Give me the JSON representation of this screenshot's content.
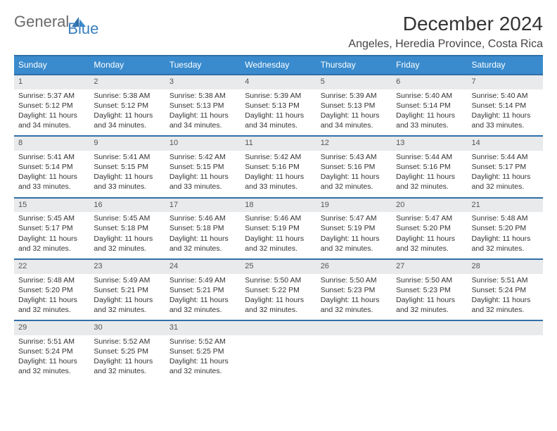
{
  "logo": {
    "text1": "General",
    "text2": "Blue"
  },
  "title": "December 2024",
  "location": "Angeles, Heredia Province, Costa Rica",
  "weekdays": [
    "Sunday",
    "Monday",
    "Tuesday",
    "Wednesday",
    "Thursday",
    "Friday",
    "Saturday"
  ],
  "colors": {
    "header_bg": "#3a8bcd",
    "header_text": "#ffffff",
    "row_border": "#2f6fa8",
    "daynum_bg": "#e8eaec",
    "body_text": "#333333"
  },
  "weeks": [
    [
      {
        "n": "1",
        "sunrise": "Sunrise: 5:37 AM",
        "sunset": "Sunset: 5:12 PM",
        "day1": "Daylight: 11 hours",
        "day2": "and 34 minutes."
      },
      {
        "n": "2",
        "sunrise": "Sunrise: 5:38 AM",
        "sunset": "Sunset: 5:12 PM",
        "day1": "Daylight: 11 hours",
        "day2": "and 34 minutes."
      },
      {
        "n": "3",
        "sunrise": "Sunrise: 5:38 AM",
        "sunset": "Sunset: 5:13 PM",
        "day1": "Daylight: 11 hours",
        "day2": "and 34 minutes."
      },
      {
        "n": "4",
        "sunrise": "Sunrise: 5:39 AM",
        "sunset": "Sunset: 5:13 PM",
        "day1": "Daylight: 11 hours",
        "day2": "and 34 minutes."
      },
      {
        "n": "5",
        "sunrise": "Sunrise: 5:39 AM",
        "sunset": "Sunset: 5:13 PM",
        "day1": "Daylight: 11 hours",
        "day2": "and 34 minutes."
      },
      {
        "n": "6",
        "sunrise": "Sunrise: 5:40 AM",
        "sunset": "Sunset: 5:14 PM",
        "day1": "Daylight: 11 hours",
        "day2": "and 33 minutes."
      },
      {
        "n": "7",
        "sunrise": "Sunrise: 5:40 AM",
        "sunset": "Sunset: 5:14 PM",
        "day1": "Daylight: 11 hours",
        "day2": "and 33 minutes."
      }
    ],
    [
      {
        "n": "8",
        "sunrise": "Sunrise: 5:41 AM",
        "sunset": "Sunset: 5:14 PM",
        "day1": "Daylight: 11 hours",
        "day2": "and 33 minutes."
      },
      {
        "n": "9",
        "sunrise": "Sunrise: 5:41 AM",
        "sunset": "Sunset: 5:15 PM",
        "day1": "Daylight: 11 hours",
        "day2": "and 33 minutes."
      },
      {
        "n": "10",
        "sunrise": "Sunrise: 5:42 AM",
        "sunset": "Sunset: 5:15 PM",
        "day1": "Daylight: 11 hours",
        "day2": "and 33 minutes."
      },
      {
        "n": "11",
        "sunrise": "Sunrise: 5:42 AM",
        "sunset": "Sunset: 5:16 PM",
        "day1": "Daylight: 11 hours",
        "day2": "and 33 minutes."
      },
      {
        "n": "12",
        "sunrise": "Sunrise: 5:43 AM",
        "sunset": "Sunset: 5:16 PM",
        "day1": "Daylight: 11 hours",
        "day2": "and 32 minutes."
      },
      {
        "n": "13",
        "sunrise": "Sunrise: 5:44 AM",
        "sunset": "Sunset: 5:16 PM",
        "day1": "Daylight: 11 hours",
        "day2": "and 32 minutes."
      },
      {
        "n": "14",
        "sunrise": "Sunrise: 5:44 AM",
        "sunset": "Sunset: 5:17 PM",
        "day1": "Daylight: 11 hours",
        "day2": "and 32 minutes."
      }
    ],
    [
      {
        "n": "15",
        "sunrise": "Sunrise: 5:45 AM",
        "sunset": "Sunset: 5:17 PM",
        "day1": "Daylight: 11 hours",
        "day2": "and 32 minutes."
      },
      {
        "n": "16",
        "sunrise": "Sunrise: 5:45 AM",
        "sunset": "Sunset: 5:18 PM",
        "day1": "Daylight: 11 hours",
        "day2": "and 32 minutes."
      },
      {
        "n": "17",
        "sunrise": "Sunrise: 5:46 AM",
        "sunset": "Sunset: 5:18 PM",
        "day1": "Daylight: 11 hours",
        "day2": "and 32 minutes."
      },
      {
        "n": "18",
        "sunrise": "Sunrise: 5:46 AM",
        "sunset": "Sunset: 5:19 PM",
        "day1": "Daylight: 11 hours",
        "day2": "and 32 minutes."
      },
      {
        "n": "19",
        "sunrise": "Sunrise: 5:47 AM",
        "sunset": "Sunset: 5:19 PM",
        "day1": "Daylight: 11 hours",
        "day2": "and 32 minutes."
      },
      {
        "n": "20",
        "sunrise": "Sunrise: 5:47 AM",
        "sunset": "Sunset: 5:20 PM",
        "day1": "Daylight: 11 hours",
        "day2": "and 32 minutes."
      },
      {
        "n": "21",
        "sunrise": "Sunrise: 5:48 AM",
        "sunset": "Sunset: 5:20 PM",
        "day1": "Daylight: 11 hours",
        "day2": "and 32 minutes."
      }
    ],
    [
      {
        "n": "22",
        "sunrise": "Sunrise: 5:48 AM",
        "sunset": "Sunset: 5:20 PM",
        "day1": "Daylight: 11 hours",
        "day2": "and 32 minutes."
      },
      {
        "n": "23",
        "sunrise": "Sunrise: 5:49 AM",
        "sunset": "Sunset: 5:21 PM",
        "day1": "Daylight: 11 hours",
        "day2": "and 32 minutes."
      },
      {
        "n": "24",
        "sunrise": "Sunrise: 5:49 AM",
        "sunset": "Sunset: 5:21 PM",
        "day1": "Daylight: 11 hours",
        "day2": "and 32 minutes."
      },
      {
        "n": "25",
        "sunrise": "Sunrise: 5:50 AM",
        "sunset": "Sunset: 5:22 PM",
        "day1": "Daylight: 11 hours",
        "day2": "and 32 minutes."
      },
      {
        "n": "26",
        "sunrise": "Sunrise: 5:50 AM",
        "sunset": "Sunset: 5:23 PM",
        "day1": "Daylight: 11 hours",
        "day2": "and 32 minutes."
      },
      {
        "n": "27",
        "sunrise": "Sunrise: 5:50 AM",
        "sunset": "Sunset: 5:23 PM",
        "day1": "Daylight: 11 hours",
        "day2": "and 32 minutes."
      },
      {
        "n": "28",
        "sunrise": "Sunrise: 5:51 AM",
        "sunset": "Sunset: 5:24 PM",
        "day1": "Daylight: 11 hours",
        "day2": "and 32 minutes."
      }
    ],
    [
      {
        "n": "29",
        "sunrise": "Sunrise: 5:51 AM",
        "sunset": "Sunset: 5:24 PM",
        "day1": "Daylight: 11 hours",
        "day2": "and 32 minutes."
      },
      {
        "n": "30",
        "sunrise": "Sunrise: 5:52 AM",
        "sunset": "Sunset: 5:25 PM",
        "day1": "Daylight: 11 hours",
        "day2": "and 32 minutes."
      },
      {
        "n": "31",
        "sunrise": "Sunrise: 5:52 AM",
        "sunset": "Sunset: 5:25 PM",
        "day1": "Daylight: 11 hours",
        "day2": "and 32 minutes."
      },
      {
        "empty": true
      },
      {
        "empty": true
      },
      {
        "empty": true
      },
      {
        "empty": true
      }
    ]
  ]
}
